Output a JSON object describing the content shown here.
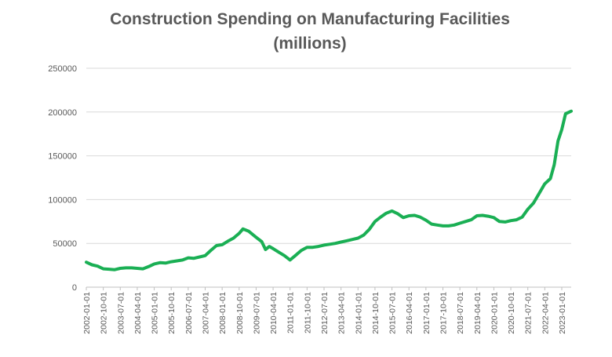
{
  "chart_data": {
    "type": "line",
    "title_lines": [
      "Construction Spending on Manufacturing Facilities",
      "(millions)"
    ],
    "xlabel": "",
    "ylabel": "",
    "ylim": [
      0,
      250000
    ],
    "yticks": [
      0,
      50000,
      100000,
      150000,
      200000,
      250000
    ],
    "ytick_labels": [
      "0",
      "50000",
      "100000",
      "150000",
      "200000",
      "250000"
    ],
    "grid": true,
    "legend": "none",
    "x_start": "2002-01-01",
    "x_end": "2023-06-01",
    "x_tick_labels": [
      "2002-01-01",
      "2002-10-01",
      "2003-07-01",
      "2004-04-01",
      "2005-01-01",
      "2005-10-01",
      "2006-07-01",
      "2007-04-01",
      "2008-01-01",
      "2008-10-01",
      "2009-07-01",
      "2010-04-01",
      "2011-01-01",
      "2011-10-01",
      "2012-07-01",
      "2013-04-01",
      "2014-01-01",
      "2014-10-01",
      "2015-07-01",
      "2016-04-01",
      "2017-01-01",
      "2017-10-01",
      "2018-07-01",
      "2019-04-01",
      "2020-01-01",
      "2020-10-01",
      "2021-07-01",
      "2022-04-01",
      "2023-01-01"
    ],
    "series": [
      {
        "name": "Construction Spending on Manufacturing Facilities",
        "color": "#1aaf54",
        "points": [
          [
            "2002-01-01",
            28500
          ],
          [
            "2002-04-01",
            25500
          ],
          [
            "2002-07-01",
            24000
          ],
          [
            "2002-10-01",
            21000
          ],
          [
            "2003-01-01",
            20500
          ],
          [
            "2003-04-01",
            20000
          ],
          [
            "2003-07-01",
            21500
          ],
          [
            "2003-10-01",
            22000
          ],
          [
            "2004-01-01",
            22000
          ],
          [
            "2004-04-01",
            21500
          ],
          [
            "2004-07-01",
            21000
          ],
          [
            "2004-10-01",
            23500
          ],
          [
            "2005-01-01",
            26500
          ],
          [
            "2005-04-01",
            28000
          ],
          [
            "2005-07-01",
            27500
          ],
          [
            "2005-10-01",
            29000
          ],
          [
            "2006-01-01",
            30000
          ],
          [
            "2006-04-01",
            31000
          ],
          [
            "2006-07-01",
            33500
          ],
          [
            "2006-10-01",
            33000
          ],
          [
            "2007-01-01",
            34500
          ],
          [
            "2007-04-01",
            36000
          ],
          [
            "2007-07-01",
            42000
          ],
          [
            "2007-10-01",
            47500
          ],
          [
            "2008-01-01",
            48500
          ],
          [
            "2008-04-01",
            52500
          ],
          [
            "2008-07-01",
            56000
          ],
          [
            "2008-10-01",
            61500
          ],
          [
            "2008-12-01",
            66500
          ],
          [
            "2009-03-01",
            64000
          ],
          [
            "2009-07-01",
            57000
          ],
          [
            "2009-10-01",
            52000
          ],
          [
            "2009-12-01",
            43000
          ],
          [
            "2010-02-01",
            46500
          ],
          [
            "2010-04-01",
            44000
          ],
          [
            "2010-07-01",
            40000
          ],
          [
            "2010-10-01",
            36000
          ],
          [
            "2011-01-01",
            31000
          ],
          [
            "2011-04-01",
            36500
          ],
          [
            "2011-07-01",
            42000
          ],
          [
            "2011-10-01",
            45500
          ],
          [
            "2012-01-01",
            45500
          ],
          [
            "2012-04-01",
            46500
          ],
          [
            "2012-07-01",
            48000
          ],
          [
            "2012-10-01",
            49000
          ],
          [
            "2013-01-01",
            50000
          ],
          [
            "2013-04-01",
            51500
          ],
          [
            "2013-07-01",
            53000
          ],
          [
            "2013-10-01",
            54500
          ],
          [
            "2014-01-01",
            56000
          ],
          [
            "2014-04-01",
            59500
          ],
          [
            "2014-07-01",
            66000
          ],
          [
            "2014-10-01",
            75000
          ],
          [
            "2015-01-01",
            80000
          ],
          [
            "2015-04-01",
            84500
          ],
          [
            "2015-07-01",
            87000
          ],
          [
            "2015-10-01",
            84000
          ],
          [
            "2016-01-01",
            79500
          ],
          [
            "2016-04-01",
            81500
          ],
          [
            "2016-07-01",
            82000
          ],
          [
            "2016-10-01",
            80000
          ],
          [
            "2017-01-01",
            76500
          ],
          [
            "2017-04-01",
            72000
          ],
          [
            "2017-07-01",
            71000
          ],
          [
            "2017-10-01",
            70000
          ],
          [
            "2018-01-01",
            70000
          ],
          [
            "2018-04-01",
            71000
          ],
          [
            "2018-07-01",
            73000
          ],
          [
            "2018-10-01",
            75000
          ],
          [
            "2019-01-01",
            77000
          ],
          [
            "2019-04-01",
            81500
          ],
          [
            "2019-07-01",
            82000
          ],
          [
            "2019-10-01",
            81000
          ],
          [
            "2020-01-01",
            79500
          ],
          [
            "2020-04-01",
            75000
          ],
          [
            "2020-07-01",
            74500
          ],
          [
            "2020-10-01",
            76000
          ],
          [
            "2021-01-01",
            77000
          ],
          [
            "2021-04-01",
            80000
          ],
          [
            "2021-07-01",
            89000
          ],
          [
            "2021-10-01",
            96000
          ],
          [
            "2022-01-01",
            107000
          ],
          [
            "2022-04-01",
            118000
          ],
          [
            "2022-07-01",
            124000
          ],
          [
            "2022-09-01",
            140000
          ],
          [
            "2022-11-01",
            167000
          ],
          [
            "2023-01-01",
            180000
          ],
          [
            "2023-03-01",
            198000
          ],
          [
            "2023-06-01",
            201000
          ]
        ]
      }
    ]
  }
}
